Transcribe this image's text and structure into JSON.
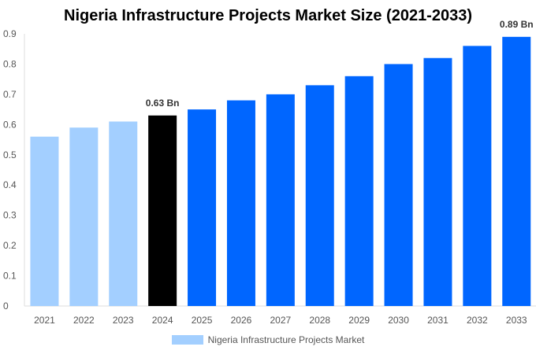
{
  "chart_data": {
    "type": "bar",
    "title": "Nigeria Infrastructure Projects Market Size (2021-2033)",
    "xlabel": "",
    "ylabel": "",
    "ylim": [
      0,
      0.9
    ],
    "yticks": [
      "0",
      "0.1",
      "0.2",
      "0.3",
      "0.4",
      "0.5",
      "0.6",
      "0.7",
      "0.8",
      "0.9"
    ],
    "grid": false,
    "legend_placement": "bottom",
    "categories": [
      "2021",
      "2022",
      "2023",
      "2024",
      "2025",
      "2026",
      "2027",
      "2028",
      "2029",
      "2030",
      "2031",
      "2032",
      "2033"
    ],
    "series": [
      {
        "name": "Nigeria Infrastructure Projects Market",
        "values": [
          0.56,
          0.59,
          0.61,
          0.63,
          0.65,
          0.68,
          0.7,
          0.73,
          0.76,
          0.8,
          0.82,
          0.86,
          0.89
        ]
      }
    ],
    "bar_colors": [
      "#a3cfff",
      "#a3cfff",
      "#a3cfff",
      "#000000",
      "#0066ff",
      "#0066ff",
      "#0066ff",
      "#0066ff",
      "#0066ff",
      "#0066ff",
      "#0066ff",
      "#0066ff",
      "#0066ff"
    ],
    "legend_color": "#a3cfff",
    "annotations": [
      {
        "category": "2024",
        "text": "0.63 Bn"
      },
      {
        "category": "2033",
        "text": "0.89 Bn"
      }
    ]
  }
}
